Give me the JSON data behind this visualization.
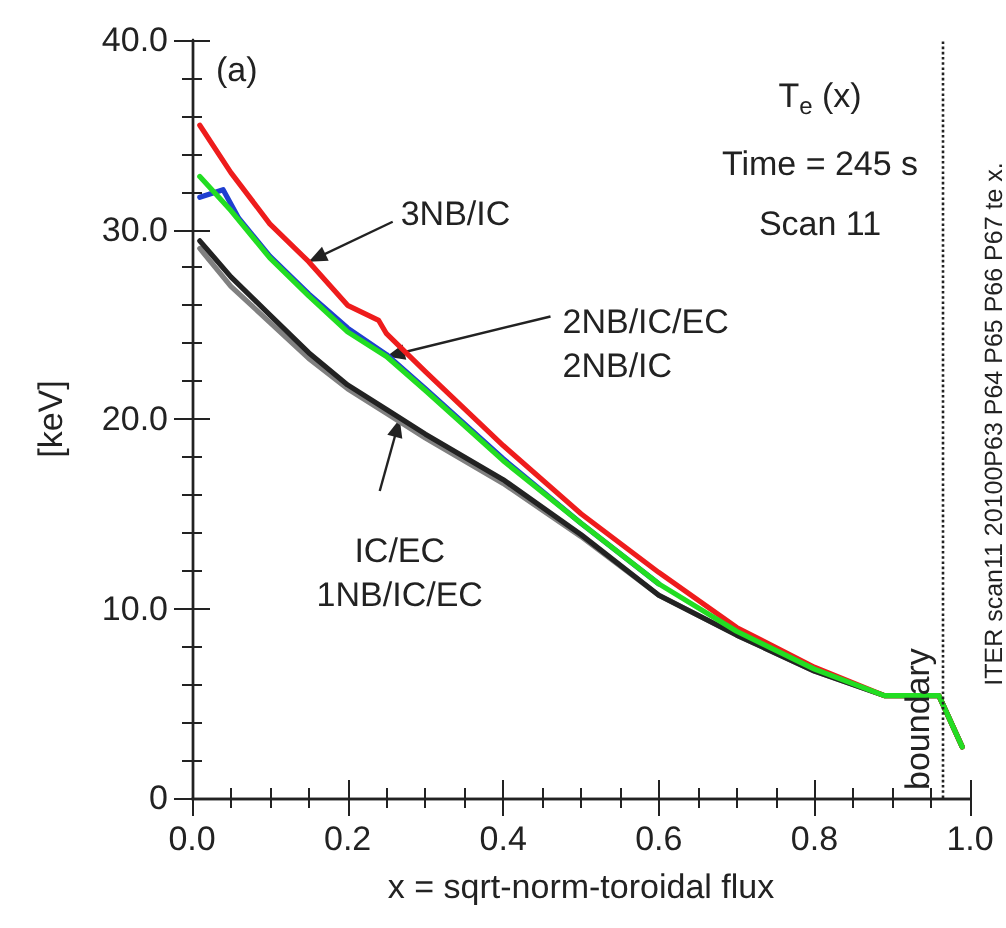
{
  "chart_data": {
    "type": "line",
    "xlabel": "x = sqrt-norm-toroidal flux",
    "ylabel": "[keV]",
    "xlim": [
      0,
      1
    ],
    "ylim": [
      0,
      40
    ],
    "xticks": [
      {
        "value": 0,
        "label": "0.0"
      },
      {
        "value": 0.2,
        "label": "0.2"
      },
      {
        "value": 0.4,
        "label": "0.4"
      },
      {
        "value": 0.6,
        "label": "0.6"
      },
      {
        "value": 0.8,
        "label": "0.8"
      },
      {
        "value": 1,
        "label": "1.0"
      }
    ],
    "yticks": [
      0,
      {
        "value": 10,
        "label": "10.0"
      },
      {
        "value": 20,
        "label": "20.0"
      },
      {
        "value": 30,
        "label": "30.0"
      },
      {
        "value": 40,
        "label": "40.0"
      }
    ],
    "grid": false,
    "marker": "none",
    "line_style": "solid",
    "series": [
      {
        "color": "#808080",
        "x": [
          0.01,
          0.05,
          0.1,
          0.15,
          0.2,
          0.25,
          0.3,
          0.4,
          0.5,
          0.6,
          0.7,
          0.8,
          0.89,
          0.96,
          0.99
        ],
        "values": [
          29.0,
          27.0,
          25.1,
          23.2,
          21.6,
          20.3,
          19.0,
          16.6,
          13.8,
          10.7,
          8.6,
          6.7,
          5.4,
          5.4,
          2.7
        ]
      },
      {
        "color": "#222222",
        "x": [
          0.01,
          0.05,
          0.1,
          0.15,
          0.2,
          0.25,
          0.3,
          0.4,
          0.5,
          0.6,
          0.7,
          0.8,
          0.89,
          0.96,
          0.99
        ],
        "values": [
          29.4,
          27.5,
          25.5,
          23.5,
          21.8,
          20.5,
          19.2,
          16.8,
          13.9,
          10.7,
          8.6,
          6.7,
          5.4,
          5.4,
          2.7
        ]
      },
      {
        "color": "#1f3fd0",
        "x": [
          0.01,
          0.04,
          0.06,
          0.1,
          0.15,
          0.2,
          0.25,
          0.3,
          0.4,
          0.5,
          0.6
        ],
        "values": [
          31.7,
          32.1,
          30.6,
          28.6,
          26.6,
          24.8,
          23.4,
          21.6,
          17.9,
          14.5,
          11.3
        ]
      },
      {
        "color": "#ee1c1c",
        "x": [
          0.01,
          0.05,
          0.1,
          0.15,
          0.2,
          0.24,
          0.25,
          0.3,
          0.4,
          0.5,
          0.6,
          0.7,
          0.8,
          0.89,
          0.96,
          0.99
        ],
        "values": [
          35.5,
          33.0,
          30.3,
          28.3,
          26.0,
          25.2,
          24.5,
          22.5,
          18.6,
          15.0,
          11.9,
          9.0,
          6.9,
          5.4,
          5.4,
          2.7
        ]
      },
      {
        "color": "#22dd22",
        "x": [
          0.01,
          0.05,
          0.1,
          0.15,
          0.2,
          0.25,
          0.3,
          0.4,
          0.5,
          0.6,
          0.7,
          0.8,
          0.89,
          0.96,
          0.99
        ],
        "values": [
          32.8,
          31.0,
          28.5,
          26.5,
          24.6,
          23.3,
          21.5,
          17.8,
          14.5,
          11.3,
          8.8,
          6.8,
          5.4,
          5.4,
          2.7
        ]
      }
    ],
    "ref_lines": [
      {
        "axis": "x",
        "value": 0.965,
        "label": "boundary",
        "line_style": "dotted",
        "color": "#222222"
      }
    ],
    "annotations": [
      "(a)",
      "T$_{e}$ (x)",
      "Time = 245 s",
      "Scan 11",
      "ITER scan11 20100P63 P64 P65 P66 P67 te x.",
      {
        "text": "3NB/IC",
        "x": 0.15,
        "y": 28.3
      },
      {
        "text": "2NB/IC/EC\n2NB/IC",
        "x": 0.25,
        "y": 23.3
      },
      {
        "text": "IC/EC\n1NB/IC/EC",
        "x": 0.267,
        "y": 20.0
      }
    ]
  }
}
